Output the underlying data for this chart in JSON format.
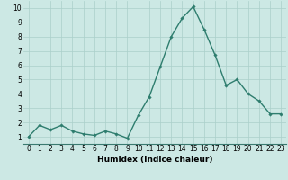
{
  "x": [
    0,
    1,
    2,
    3,
    4,
    5,
    6,
    7,
    8,
    9,
    10,
    11,
    12,
    13,
    14,
    15,
    16,
    17,
    18,
    19,
    20,
    21,
    22,
    23
  ],
  "y": [
    1.0,
    1.8,
    1.5,
    1.8,
    1.4,
    1.2,
    1.1,
    1.4,
    1.2,
    0.9,
    2.5,
    3.8,
    5.9,
    8.0,
    9.3,
    10.1,
    8.5,
    6.7,
    4.6,
    5.0,
    4.0,
    3.5,
    2.6,
    2.6
  ],
  "xlabel": "Humidex (Indice chaleur)",
  "line_color": "#2e7d6e",
  "marker": "D",
  "marker_size": 1.8,
  "bg_color": "#cce8e4",
  "grid_color": "#aacfca",
  "xlim": [
    -0.5,
    23.5
  ],
  "ylim": [
    0.5,
    10.5
  ],
  "yticks": [
    1,
    2,
    3,
    4,
    5,
    6,
    7,
    8,
    9,
    10
  ],
  "xticks": [
    0,
    1,
    2,
    3,
    4,
    5,
    6,
    7,
    8,
    9,
    10,
    11,
    12,
    13,
    14,
    15,
    16,
    17,
    18,
    19,
    20,
    21,
    22,
    23
  ],
  "xlabel_fontsize": 6.5,
  "tick_fontsize": 5.5,
  "line_width": 1.0
}
